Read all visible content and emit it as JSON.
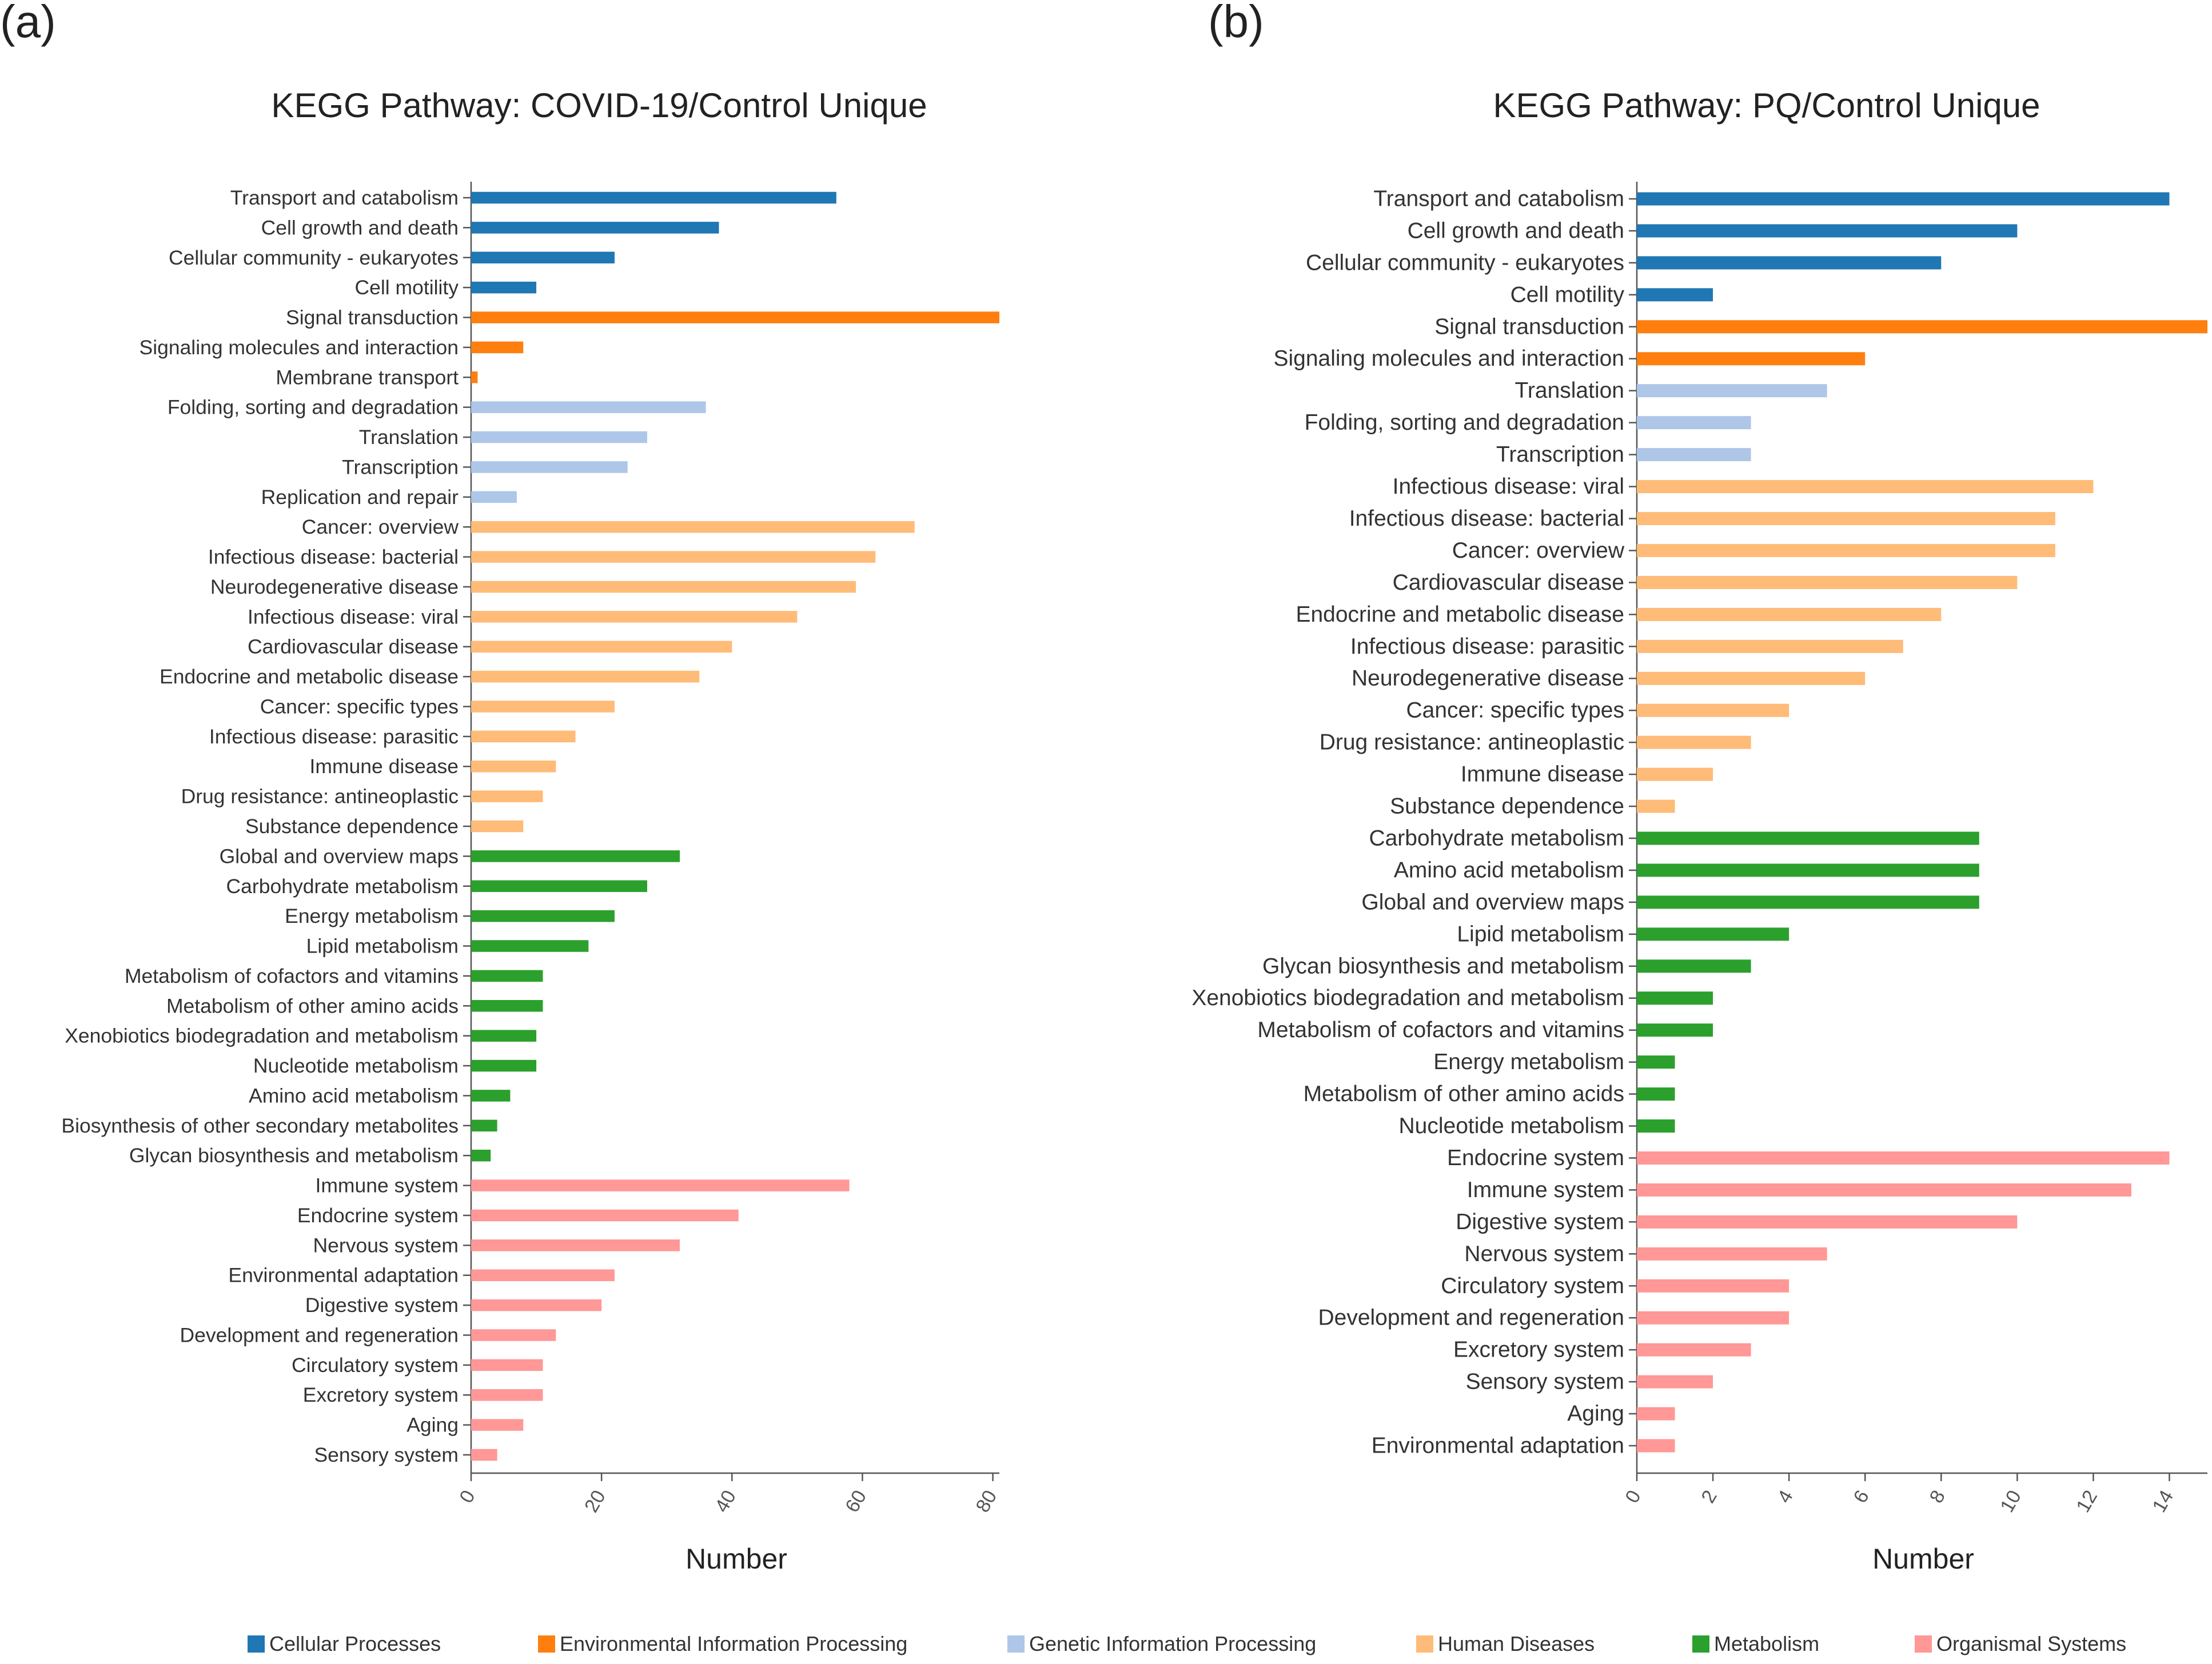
{
  "colors": {
    "Cellular Processes": "#1f77b4",
    "Environmental Information Processing": "#ff7f0e",
    "Genetic Information Processing": "#aec7e8",
    "Human Diseases": "#ffbb78",
    "Metabolism": "#2ca02c",
    "Organismal Systems": "#ff9896"
  },
  "panels": {
    "a": {
      "label": "(a)"
    },
    "b": {
      "label": "(b)"
    }
  },
  "legend": [
    {
      "label": "Cellular Processes",
      "color": "#1f77b4"
    },
    {
      "label": "Environmental Information Processing",
      "color": "#ff7f0e"
    },
    {
      "label": "Genetic Information Processing",
      "color": "#aec7e8"
    },
    {
      "label": "Human Diseases",
      "color": "#ffbb78"
    },
    {
      "label": "Metabolism",
      "color": "#2ca02c"
    },
    {
      "label": "Organismal Systems",
      "color": "#ff9896"
    }
  ],
  "chart_data": [
    {
      "type": "bar",
      "orientation": "horizontal",
      "title": "KEGG Pathway: COVID-19/Control Unique",
      "xlabel": "Number",
      "ylabel": "",
      "xlim": [
        0,
        81
      ],
      "xticks": [
        0,
        20,
        40,
        60,
        80
      ],
      "categories": [
        "Transport and catabolism",
        "Cell growth and death",
        "Cellular community - eukaryotes",
        "Cell motility",
        "Signal transduction",
        "Signaling molecules and interaction",
        "Membrane transport",
        "Folding, sorting and degradation",
        "Translation",
        "Transcription",
        "Replication and repair",
        "Cancer: overview",
        "Infectious disease: bacterial",
        "Neurodegenerative disease",
        "Infectious disease: viral",
        "Cardiovascular disease",
        "Endocrine and metabolic disease",
        "Cancer: specific types",
        "Infectious disease: parasitic",
        "Immune disease",
        "Drug resistance: antineoplastic",
        "Substance dependence",
        "Global and overview maps",
        "Carbohydrate metabolism",
        "Energy metabolism",
        "Lipid metabolism",
        "Metabolism of cofactors and vitamins",
        "Metabolism of other amino acids",
        "Xenobiotics biodegradation and metabolism",
        "Nucleotide metabolism",
        "Amino acid metabolism",
        "Biosynthesis of other secondary metabolites",
        "Glycan biosynthesis and metabolism",
        "Immune system",
        "Endocrine system",
        "Nervous system",
        "Environmental adaptation",
        "Digestive system",
        "Development and regeneration",
        "Circulatory system",
        "Excretory system",
        "Aging",
        "Sensory system"
      ],
      "values": [
        56,
        38,
        22,
        10,
        81,
        8,
        1,
        36,
        27,
        24,
        7,
        68,
        62,
        59,
        50,
        40,
        35,
        22,
        16,
        13,
        11,
        8,
        32,
        27,
        22,
        18,
        11,
        11,
        10,
        10,
        6,
        4,
        3,
        58,
        41,
        32,
        22,
        20,
        13,
        11,
        11,
        8,
        4
      ],
      "groups": [
        "Cellular Processes",
        "Cellular Processes",
        "Cellular Processes",
        "Cellular Processes",
        "Environmental Information Processing",
        "Environmental Information Processing",
        "Environmental Information Processing",
        "Genetic Information Processing",
        "Genetic Information Processing",
        "Genetic Information Processing",
        "Genetic Information Processing",
        "Human Diseases",
        "Human Diseases",
        "Human Diseases",
        "Human Diseases",
        "Human Diseases",
        "Human Diseases",
        "Human Diseases",
        "Human Diseases",
        "Human Diseases",
        "Human Diseases",
        "Human Diseases",
        "Metabolism",
        "Metabolism",
        "Metabolism",
        "Metabolism",
        "Metabolism",
        "Metabolism",
        "Metabolism",
        "Metabolism",
        "Metabolism",
        "Metabolism",
        "Metabolism",
        "Organismal Systems",
        "Organismal Systems",
        "Organismal Systems",
        "Organismal Systems",
        "Organismal Systems",
        "Organismal Systems",
        "Organismal Systems",
        "Organismal Systems",
        "Organismal Systems",
        "Organismal Systems"
      ]
    },
    {
      "type": "bar",
      "orientation": "horizontal",
      "title": "KEGG Pathway: PQ/Control Unique",
      "xlabel": "Number",
      "ylabel": "",
      "xlim": [
        0,
        15
      ],
      "xticks": [
        0,
        2,
        4,
        6,
        8,
        10,
        12,
        14
      ],
      "categories": [
        "Transport and catabolism",
        "Cell growth and death",
        "Cellular community - eukaryotes",
        "Cell motility",
        "Signal transduction",
        "Signaling molecules and interaction",
        "Translation",
        "Folding, sorting and degradation",
        "Transcription",
        "Infectious disease: viral",
        "Infectious disease: bacterial",
        "Cancer: overview",
        "Cardiovascular disease",
        "Endocrine and metabolic disease",
        "Infectious disease: parasitic",
        "Neurodegenerative disease",
        "Cancer: specific types",
        "Drug resistance: antineoplastic",
        "Immune disease",
        "Substance dependence",
        "Carbohydrate metabolism",
        "Amino acid metabolism",
        "Global and overview maps",
        "Lipid metabolism",
        "Glycan biosynthesis and metabolism",
        "Xenobiotics biodegradation and metabolism",
        "Metabolism of cofactors and vitamins",
        "Energy metabolism",
        "Metabolism of other amino acids",
        "Nucleotide metabolism",
        "Endocrine system",
        "Immune system",
        "Digestive system",
        "Nervous system",
        "Circulatory system",
        "Development and regeneration",
        "Excretory system",
        "Sensory system",
        "Aging",
        "Environmental adaptation"
      ],
      "values": [
        14,
        10,
        8,
        2,
        15,
        6,
        5,
        3,
        3,
        12,
        11,
        11,
        10,
        8,
        7,
        6,
        4,
        3,
        2,
        1,
        9,
        9,
        9,
        4,
        3,
        2,
        2,
        1,
        1,
        1,
        14,
        13,
        10,
        5,
        4,
        4,
        3,
        2,
        1,
        1
      ],
      "groups": [
        "Cellular Processes",
        "Cellular Processes",
        "Cellular Processes",
        "Cellular Processes",
        "Environmental Information Processing",
        "Environmental Information Processing",
        "Genetic Information Processing",
        "Genetic Information Processing",
        "Genetic Information Processing",
        "Human Diseases",
        "Human Diseases",
        "Human Diseases",
        "Human Diseases",
        "Human Diseases",
        "Human Diseases",
        "Human Diseases",
        "Human Diseases",
        "Human Diseases",
        "Human Diseases",
        "Human Diseases",
        "Metabolism",
        "Metabolism",
        "Metabolism",
        "Metabolism",
        "Metabolism",
        "Metabolism",
        "Metabolism",
        "Metabolism",
        "Metabolism",
        "Metabolism",
        "Organismal Systems",
        "Organismal Systems",
        "Organismal Systems",
        "Organismal Systems",
        "Organismal Systems",
        "Organismal Systems",
        "Organismal Systems",
        "Organismal Systems",
        "Organismal Systems",
        "Organismal Systems"
      ]
    }
  ]
}
